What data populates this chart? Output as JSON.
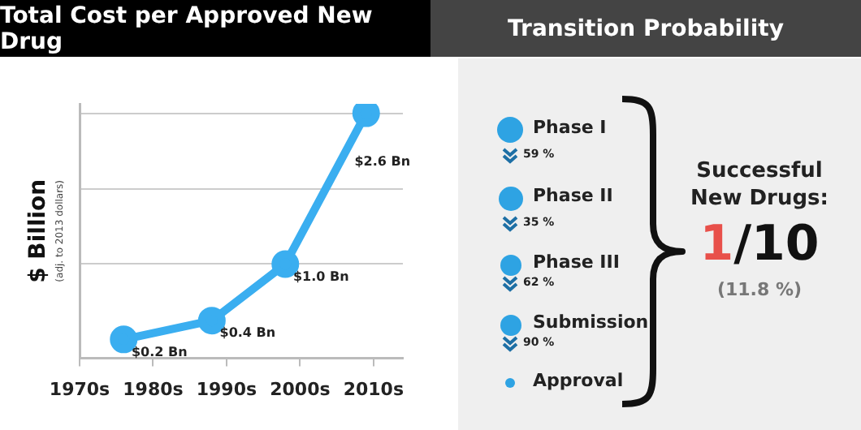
{
  "chart_data": [
    {
      "type": "line",
      "title": "Total Cost per Approved New Drug",
      "ylabel": "$ Billion",
      "annotations": [
        "(adj. to 2013 dollars)"
      ],
      "x": [
        1976,
        1988,
        1998,
        2009
      ],
      "xlim": [
        1970,
        2014
      ],
      "xticks": [
        {
          "value": 1970,
          "label": "1970s"
        },
        {
          "value": 1980,
          "label": "1980s"
        },
        {
          "value": 1990,
          "label": "1990s"
        },
        {
          "value": 2000,
          "label": "2000s"
        },
        {
          "value": 2010,
          "label": "2010s"
        }
      ],
      "ylim": [
        0,
        2.7
      ],
      "yticks": [
        {
          "value": 1.0,
          "label": null
        },
        {
          "value": 1.8,
          "label": null
        },
        {
          "value": 2.6,
          "label": null
        }
      ],
      "grid": "y",
      "tick_labels": "x",
      "marker": "circle",
      "series": [
        {
          "color": "#3aaef0",
          "values": [
            0.2,
            0.4,
            1.0,
            2.6
          ],
          "value_labels": [
            "$0.2 Bn",
            "$0.4 Bn",
            "$1.0 Bn",
            "$2.6 Bn"
          ]
        }
      ]
    },
    {
      "type": "other",
      "title": "Transition Probability",
      "annotations": [
        "Phase I",
        "59 %",
        "Phase II",
        "35 %",
        "Phase III",
        "62 %",
        "Submission",
        "90 %",
        "Approval",
        "Successful New Drugs:",
        "1",
        "/10",
        "(11.8 %)"
      ]
    }
  ]
}
